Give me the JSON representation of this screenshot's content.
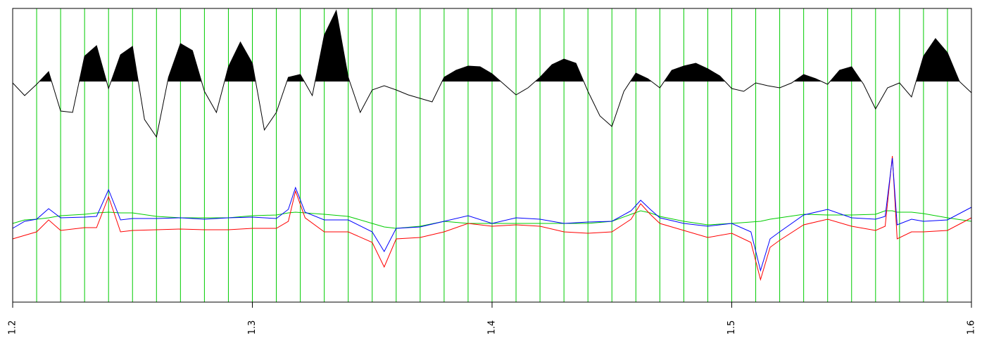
{
  "chart_data": {
    "type": "line",
    "xlim": [
      1.2,
      1.6
    ],
    "ylim": [
      0,
      418
    ],
    "xticks": [
      1.2,
      1.3,
      1.4,
      1.5,
      1.6
    ],
    "vgrid": [
      1.21,
      1.22,
      1.23,
      1.24,
      1.25,
      1.26,
      1.27,
      1.28,
      1.29,
      1.3,
      1.31,
      1.32,
      1.33,
      1.34,
      1.35,
      1.36,
      1.37,
      1.38,
      1.39,
      1.4,
      1.41,
      1.42,
      1.43,
      1.44,
      1.45,
      1.46,
      1.47,
      1.48,
      1.49,
      1.5,
      1.51,
      1.52,
      1.53,
      1.54,
      1.55,
      1.56,
      1.57,
      1.58,
      1.59
    ],
    "vgrid_color": "#00cc00",
    "fill_baseline": 314,
    "series": [
      {
        "color": "#000000",
        "fill": true,
        "x": [
          1.2,
          1.205,
          1.21,
          1.215,
          1.22,
          1.225,
          1.23,
          1.235,
          1.24,
          1.245,
          1.25,
          1.255,
          1.26,
          1.265,
          1.27,
          1.275,
          1.28,
          1.285,
          1.29,
          1.295,
          1.3,
          1.305,
          1.31,
          1.315,
          1.32,
          1.325,
          1.33,
          1.335,
          1.34,
          1.345,
          1.35,
          1.355,
          1.36,
          1.365,
          1.37,
          1.375,
          1.38,
          1.385,
          1.39,
          1.395,
          1.4,
          1.405,
          1.41,
          1.415,
          1.42,
          1.425,
          1.43,
          1.435,
          1.44,
          1.445,
          1.45,
          1.455,
          1.46,
          1.465,
          1.47,
          1.475,
          1.48,
          1.485,
          1.49,
          1.495,
          1.5,
          1.505,
          1.51,
          1.515,
          1.52,
          1.525,
          1.53,
          1.535,
          1.54,
          1.545,
          1.55,
          1.555,
          1.56,
          1.565,
          1.57,
          1.575,
          1.58,
          1.585,
          1.59,
          1.595,
          1.6
        ],
        "values": [
          312,
          294,
          310,
          328,
          272,
          270,
          350,
          365,
          304,
          352,
          364,
          260,
          235,
          320,
          368,
          358,
          300,
          270,
          335,
          370,
          340,
          245,
          270,
          320,
          324,
          294,
          380,
          415,
          320,
          270,
          302,
          308,
          302,
          295,
          290,
          285,
          320,
          330,
          336,
          335,
          325,
          310,
          295,
          305,
          320,
          338,
          346,
          340,
          300,
          265,
          250,
          300,
          326,
          318,
          305,
          330,
          336,
          340,
          332,
          322,
          304,
          300,
          312,
          308,
          305,
          312,
          324,
          318,
          310,
          330,
          335,
          310,
          275,
          305,
          312,
          292,
          350,
          375,
          355,
          314,
          298
        ]
      },
      {
        "color": "#00cc00",
        "fill": false,
        "x": [
          1.2,
          1.205,
          1.21,
          1.215,
          1.22,
          1.23,
          1.235,
          1.24,
          1.245,
          1.25,
          1.26,
          1.27,
          1.28,
          1.29,
          1.3,
          1.31,
          1.315,
          1.318,
          1.322,
          1.33,
          1.34,
          1.35,
          1.355,
          1.36,
          1.37,
          1.38,
          1.39,
          1.4,
          1.41,
          1.42,
          1.43,
          1.44,
          1.45,
          1.458,
          1.462,
          1.466,
          1.47,
          1.48,
          1.49,
          1.5,
          1.508,
          1.512,
          1.516,
          1.52,
          1.53,
          1.54,
          1.55,
          1.56,
          1.564,
          1.567,
          1.569,
          1.575,
          1.58,
          1.59,
          1.6
        ],
        "values": [
          112,
          117,
          118,
          120,
          123,
          125,
          127,
          128,
          127,
          127,
          122,
          120,
          120,
          120,
          123,
          124,
          127,
          128,
          127,
          125,
          122,
          112,
          107,
          105,
          108,
          115,
          112,
          112,
          112,
          112,
          112,
          112,
          115,
          125,
          130,
          127,
          122,
          115,
          110,
          112,
          114,
          115,
          118,
          120,
          125,
          124,
          124,
          125,
          130,
          130,
          128,
          128,
          126,
          120,
          115
        ]
      },
      {
        "color": "#ff0000",
        "fill": false,
        "x": [
          1.2,
          1.205,
          1.21,
          1.215,
          1.22,
          1.23,
          1.235,
          1.24,
          1.245,
          1.25,
          1.26,
          1.27,
          1.28,
          1.29,
          1.3,
          1.31,
          1.315,
          1.318,
          1.322,
          1.33,
          1.34,
          1.35,
          1.355,
          1.36,
          1.37,
          1.38,
          1.39,
          1.4,
          1.41,
          1.42,
          1.43,
          1.44,
          1.45,
          1.458,
          1.462,
          1.466,
          1.47,
          1.48,
          1.49,
          1.5,
          1.508,
          1.512,
          1.516,
          1.52,
          1.53,
          1.54,
          1.55,
          1.56,
          1.564,
          1.567,
          1.569,
          1.575,
          1.58,
          1.59,
          1.6
        ],
        "values": [
          90,
          95,
          100,
          117,
          102,
          106,
          106,
          150,
          100,
          102,
          103,
          104,
          103,
          103,
          105,
          105,
          115,
          158,
          120,
          100,
          100,
          85,
          50,
          90,
          92,
          100,
          112,
          108,
          110,
          108,
          100,
          98,
          100,
          118,
          140,
          125,
          112,
          102,
          92,
          98,
          85,
          32,
          78,
          88,
          110,
          118,
          108,
          102,
          108,
          208,
          90,
          100,
          100,
          102,
          120
        ]
      },
      {
        "color": "#0000ff",
        "fill": false,
        "x": [
          1.2,
          1.205,
          1.21,
          1.215,
          1.22,
          1.23,
          1.235,
          1.24,
          1.245,
          1.25,
          1.26,
          1.27,
          1.28,
          1.29,
          1.3,
          1.31,
          1.315,
          1.318,
          1.322,
          1.33,
          1.34,
          1.35,
          1.355,
          1.36,
          1.37,
          1.38,
          1.39,
          1.4,
          1.41,
          1.42,
          1.43,
          1.44,
          1.45,
          1.458,
          1.462,
          1.466,
          1.47,
          1.48,
          1.49,
          1.5,
          1.508,
          1.512,
          1.516,
          1.52,
          1.53,
          1.54,
          1.55,
          1.56,
          1.564,
          1.567,
          1.569,
          1.575,
          1.58,
          1.59,
          1.6
        ],
        "values": [
          105,
          115,
          118,
          133,
          120,
          121,
          122,
          160,
          117,
          119,
          119,
          120,
          118,
          120,
          121,
          119,
          132,
          163,
          128,
          117,
          117,
          100,
          72,
          105,
          107,
          115,
          123,
          112,
          120,
          118,
          112,
          114,
          115,
          130,
          145,
          132,
          120,
          112,
          108,
          112,
          100,
          45,
          90,
          100,
          124,
          132,
          120,
          118,
          122,
          205,
          110,
          118,
          115,
          117,
          135
        ]
      }
    ]
  }
}
